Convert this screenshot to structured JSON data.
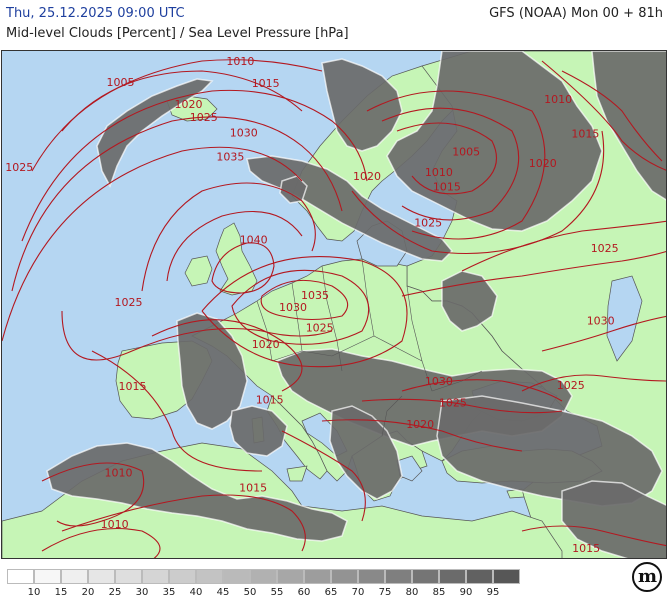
{
  "header": {
    "datetime": "Thu, 25.12.2025 09:00 UTC",
    "title": "Mid-level Clouds [Percent] / Sea Level Pressure [hPa]",
    "model": "GFS (NOAA) Mon 00 + 81h"
  },
  "map": {
    "colors": {
      "sea": "#b5d6f2",
      "land": "#c6f5b6",
      "cloud": "#6a6a6a",
      "isobar": "#b31820",
      "border": "#555555"
    },
    "isobar_labels": [
      {
        "text": "1010",
        "hx": 0.358,
        "hy": 0.022
      },
      {
        "text": "1005",
        "hx": 0.178,
        "hy": 0.063
      },
      {
        "text": "1015",
        "hx": 0.396,
        "hy": 0.065
      },
      {
        "text": "1020",
        "hx": 0.28,
        "hy": 0.106
      },
      {
        "text": "1025",
        "hx": 0.303,
        "hy": 0.132
      },
      {
        "text": "1030",
        "hx": 0.363,
        "hy": 0.162
      },
      {
        "text": "1035",
        "hx": 0.343,
        "hy": 0.209
      },
      {
        "text": "1025",
        "hx": 0.026,
        "hy": 0.23
      },
      {
        "text": "1010",
        "hx": 0.835,
        "hy": 0.096
      },
      {
        "text": "1015",
        "hx": 0.876,
        "hy": 0.164
      },
      {
        "text": "1020",
        "hx": 0.812,
        "hy": 0.222
      },
      {
        "text": "1005",
        "hx": 0.697,
        "hy": 0.199
      },
      {
        "text": "1010",
        "hx": 0.656,
        "hy": 0.24
      },
      {
        "text": "1015",
        "hx": 0.668,
        "hy": 0.268
      },
      {
        "text": "1020",
        "hx": 0.548,
        "hy": 0.248
      },
      {
        "text": "1025",
        "hx": 0.64,
        "hy": 0.339
      },
      {
        "text": "1025",
        "hx": 0.905,
        "hy": 0.389
      },
      {
        "text": "1040",
        "hx": 0.378,
        "hy": 0.372
      },
      {
        "text": "1035",
        "hx": 0.47,
        "hy": 0.481
      },
      {
        "text": "1030",
        "hx": 0.437,
        "hy": 0.505
      },
      {
        "text": "1025",
        "hx": 0.19,
        "hy": 0.495
      },
      {
        "text": "1025",
        "hx": 0.477,
        "hy": 0.545
      },
      {
        "text": "1030",
        "hx": 0.899,
        "hy": 0.531
      },
      {
        "text": "1020",
        "hx": 0.396,
        "hy": 0.578
      },
      {
        "text": "1030",
        "hx": 0.656,
        "hy": 0.65
      },
      {
        "text": "1025",
        "hx": 0.854,
        "hy": 0.658
      },
      {
        "text": "1015",
        "hx": 0.196,
        "hy": 0.66
      },
      {
        "text": "1015",
        "hx": 0.402,
        "hy": 0.687
      },
      {
        "text": "1025",
        "hx": 0.677,
        "hy": 0.693
      },
      {
        "text": "1020",
        "hx": 0.628,
        "hy": 0.735
      },
      {
        "text": "1010",
        "hx": 0.175,
        "hy": 0.83
      },
      {
        "text": "1015",
        "hx": 0.377,
        "hy": 0.86
      },
      {
        "text": "1010",
        "hx": 0.169,
        "hy": 0.931
      },
      {
        "text": "1015",
        "hx": 0.877,
        "hy": 0.978
      }
    ]
  },
  "legend": {
    "ticks": [
      "10",
      "15",
      "20",
      "25",
      "30",
      "35",
      "40",
      "45",
      "50",
      "55",
      "60",
      "65",
      "70",
      "75",
      "80",
      "85",
      "90",
      "95"
    ],
    "colors": [
      "#ffffff",
      "#f7f7f7",
      "#efefef",
      "#e6e6e6",
      "#dedede",
      "#d5d5d5",
      "#cccccc",
      "#c3c3c3",
      "#bababa",
      "#b1b1b1",
      "#a7a7a7",
      "#9d9d9d",
      "#939393",
      "#898989",
      "#7f7f7f",
      "#757575",
      "#6b6b6b",
      "#616161",
      "#575757"
    ]
  },
  "logo": {
    "text": "m",
    "icon": "meteoblue-logo-icon"
  }
}
